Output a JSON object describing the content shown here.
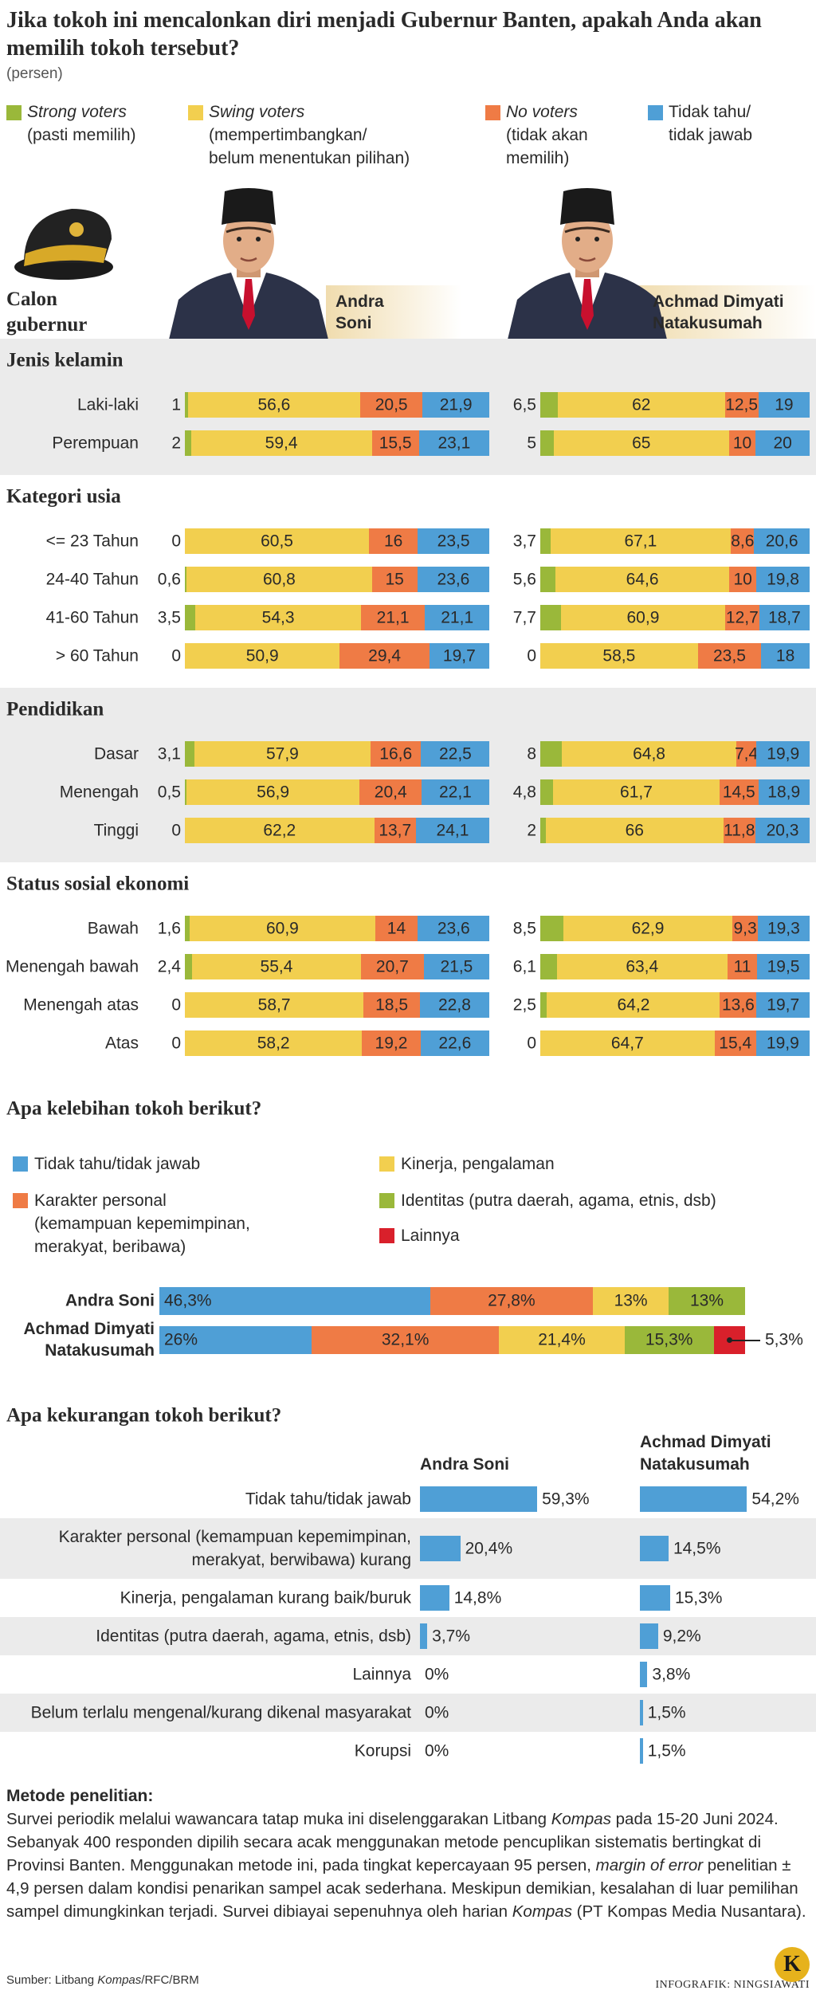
{
  "title": "Jika tokoh ini mencalonkan diri menjadi Gubernur Banten, apakah Anda akan memilih tokoh tersebut?",
  "subtitle": "(persen)",
  "candidates_label": "Calon gubernur",
  "chart_data": [
    {
      "type": "stacked-bar",
      "series": [
        {
          "name": "Strong voters",
          "description": "(pasti memilih)",
          "color": "#9ab83a",
          "italic": true
        },
        {
          "name": "Swing voters",
          "description": "(mempertimbangkan/\nbelum menentukan pilihan)",
          "color": "#f2cf4f",
          "italic": true
        },
        {
          "name": "No voters",
          "description": "(tidak akan\nmemilih)",
          "color": "#ef7b45",
          "italic": true
        },
        {
          "name": "Tidak tahu/\ntidak jawab",
          "color": "#4f9fd6",
          "italic": false
        }
      ],
      "groups": [
        {
          "name": "Jenis kelamin",
          "categories": [
            "Laki-laki",
            "Perempuan"
          ]
        },
        {
          "name": "Kategori usia",
          "categories": [
            "<= 23 Tahun",
            "24-40 Tahun",
            "41-60 Tahun",
            "> 60 Tahun"
          ]
        },
        {
          "name": "Pendidikan",
          "categories": [
            "Dasar",
            "Menengah",
            "Tinggi"
          ]
        },
        {
          "name": "Status sosial ekonomi",
          "categories": [
            "Bawah",
            "Menengah bawah",
            "Menengah atas",
            "Atas"
          ]
        }
      ],
      "panels": [
        {
          "name": "Andra Soni",
          "values": [
            [
              1,
              2,
              0,
              0.6,
              3.5,
              0,
              3.1,
              0.5,
              0,
              1.6,
              2.4,
              0,
              0
            ],
            [
              56.6,
              59.4,
              60.5,
              60.8,
              54.3,
              50.9,
              57.9,
              56.9,
              62.2,
              60.9,
              55.4,
              58.7,
              58.2
            ],
            [
              20.5,
              15.5,
              16,
              15,
              21.1,
              29.4,
              16.6,
              20.4,
              13.7,
              14,
              20.7,
              18.5,
              19.2
            ],
            [
              21.9,
              23.1,
              23.5,
              23.6,
              21.1,
              19.7,
              22.5,
              22.1,
              24.1,
              23.6,
              21.5,
              22.8,
              22.6
            ]
          ],
          "value_labels": [
            [
              "1",
              "2",
              "0",
              "0,6",
              "3,5",
              "0",
              "3,1",
              "0,5",
              "0",
              "1,6",
              "2,4",
              "0",
              "0"
            ],
            [
              "56,6",
              "59,4",
              "60,5",
              "60,8",
              "54,3",
              "50,9",
              "57,9",
              "56,9",
              "62,2",
              "60,9",
              "55,4",
              "58,7",
              "58,2"
            ],
            [
              "20,5",
              "15,5",
              "16",
              "15",
              "21,1",
              "29,4",
              "16,6",
              "20,4",
              "13,7",
              "14",
              "20,7",
              "18,5",
              "19,2"
            ],
            [
              "21,9",
              "23,1",
              "23,5",
              "23,6",
              "21,1",
              "19,7",
              "22,5",
              "22,1",
              "24,1",
              "23,6",
              "21,5",
              "22,8",
              "22,6"
            ]
          ]
        },
        {
          "name": "Achmad Dimyati Natakusumah",
          "values": [
            [
              6.5,
              5,
              3.7,
              5.6,
              7.7,
              0,
              8,
              4.8,
              2,
              8.5,
              6.1,
              2.5,
              0
            ],
            [
              62,
              65,
              67.1,
              64.6,
              60.9,
              58.5,
              64.8,
              61.7,
              66,
              62.9,
              63.4,
              64.2,
              64.7
            ],
            [
              12.5,
              10,
              8.6,
              10,
              12.7,
              23.5,
              7.4,
              14.5,
              11.8,
              9.3,
              11,
              13.6,
              15.4
            ],
            [
              19,
              20,
              20.6,
              19.8,
              18.7,
              18,
              19.9,
              18.9,
              20.3,
              19.3,
              19.5,
              19.7,
              19.9
            ]
          ],
          "value_labels": [
            [
              "6,5",
              "5",
              "3,7",
              "5,6",
              "7,7",
              "0",
              "8",
              "4,8",
              "2",
              "8,5",
              "6,1",
              "2,5",
              "0"
            ],
            [
              "62",
              "65",
              "67,1",
              "64,6",
              "60,9",
              "58,5",
              "64,8",
              "61,7",
              "66",
              "62,9",
              "63,4",
              "64,2",
              "64,7"
            ],
            [
              "12,5",
              "10",
              "8,6",
              "10",
              "12,7",
              "23,5",
              "7,4",
              "14,5",
              "11,8",
              "9,3",
              "11",
              "13,6",
              "15,4"
            ],
            [
              "19",
              "20",
              "20,6",
              "19,8",
              "18,7",
              "18",
              "19,9",
              "18,9",
              "20,3",
              "19,3",
              "19,5",
              "19,7",
              "19,9"
            ]
          ]
        }
      ]
    },
    {
      "type": "stacked-bar",
      "title": "Apa kelebihan tokoh berikut?",
      "categories": [
        "Andra Soni",
        "Achmad Dimyati Natakusumah"
      ],
      "series": [
        {
          "name": "Tidak tahu/tidak jawab",
          "color": "#4f9fd6",
          "values": [
            46.3,
            26
          ],
          "value_labels": [
            "46,3%",
            "26%"
          ]
        },
        {
          "name": "Karakter personal\n(kemampuan kepemimpinan,\nmerakyat, beribawa)",
          "color": "#ef7b45",
          "values": [
            27.8,
            32.1
          ],
          "value_labels": [
            "27,8%",
            "32,1%"
          ]
        },
        {
          "name": "Kinerja, pengalaman",
          "color": "#f2cf4f",
          "values": [
            13,
            21.4
          ],
          "value_labels": [
            "13%",
            "21,4%"
          ]
        },
        {
          "name": "Identitas (putra daerah, agama, etnis, dsb)",
          "color": "#9ab83a",
          "values": [
            13,
            15.3
          ],
          "value_labels": [
            "13%",
            "15,3%"
          ]
        },
        {
          "name": "Lainnya",
          "color": "#d9202b",
          "values": [
            null,
            5.3
          ],
          "value_labels": [
            null,
            "5,3%"
          ]
        }
      ]
    },
    {
      "type": "bar",
      "title": "Apa kekurangan tokoh berikut?",
      "categories": [
        "Tidak tahu/tidak jawab",
        "Karakter personal (kemampuan kepemimpinan,\nmerakyat, berwibawa) kurang",
        "Kinerja, pengalaman kurang baik/buruk",
        "Identitas (putra daerah, agama, etnis, dsb)",
        "Lainnya",
        "Belum terlalu mengenal/kurang dikenal masyarakat",
        "Korupsi"
      ],
      "series": [
        {
          "name": "Andra Soni",
          "color": "#4f9fd6",
          "values": [
            59.3,
            20.4,
            14.8,
            3.7,
            0,
            0,
            0
          ],
          "value_labels": [
            "59,3%",
            "20,4%",
            "14,8%",
            "3,7%",
            "0%",
            "0%",
            "0%"
          ]
        },
        {
          "name": "Achmad Dimyati Natakusumah",
          "color": "#4f9fd6",
          "values": [
            54.2,
            14.5,
            15.3,
            9.2,
            3.8,
            1.5,
            1.5
          ],
          "value_labels": [
            "54,2%",
            "14,5%",
            "15,3%",
            "9,2%",
            "3,8%",
            "1,5%",
            "1,5%"
          ]
        }
      ]
    }
  ],
  "method": {
    "title": "Metode penelitian:",
    "runs": [
      {
        "text": "Survei periodik melalui wawancara tatap muka ini diselenggarakan Litbang ",
        "italic": false
      },
      {
        "text": "Kompas",
        "italic": true
      },
      {
        "text": " pada 15-20 Juni 2024. Sebanyak 400 responden dipilih secara acak menggunakan metode pencuplikan sistematis bertingkat di Provinsi Banten. Menggunakan metode ini, pada tingkat kepercayaan 95 persen, ",
        "italic": false
      },
      {
        "text": "margin of error",
        "italic": true
      },
      {
        "text": " penelitian ± 4,9 persen dalam kondisi penarikan sampel acak sederhana. Meskipun demikian, kesalahan di luar pemilihan sampel dimungkinkan terjadi. Survei dibiayai sepenuhnya oleh harian ",
        "italic": false
      },
      {
        "text": "Kompas",
        "italic": true
      },
      {
        "text": " (PT Kompas Media Nusantara).",
        "italic": false
      }
    ]
  },
  "source": {
    "runs": [
      {
        "text": "Sumber: Litbang ",
        "italic": false
      },
      {
        "text": "Kompas",
        "italic": true
      },
      {
        "text": "/RFC/BRM",
        "italic": false
      }
    ]
  },
  "credit": "INFOGRAFIK: NINGSIAWATI",
  "logo": "K"
}
